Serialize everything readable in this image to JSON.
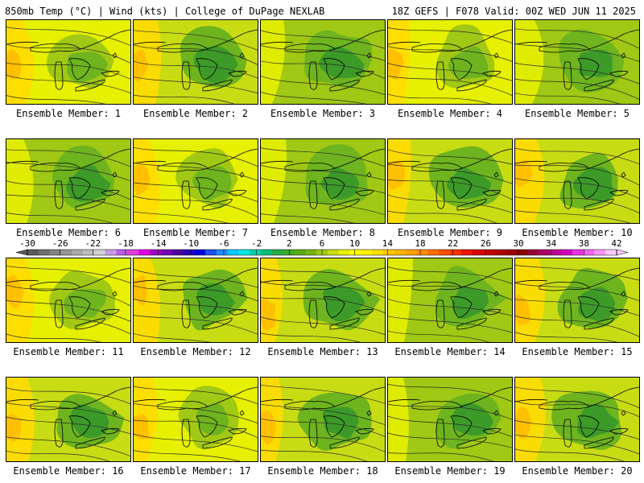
{
  "header": {
    "left_title": "850mb Temp (°C) | Wind (kts) | College of DuPage NEXLAB",
    "right_title": "18Z GEFS | F078 Valid: 00Z WED JUN 11 2025"
  },
  "caption_prefix": "Ensemble Member: ",
  "panels": [
    {
      "member": "1",
      "caption": "Ensemble Member: 1",
      "tone": "yellow"
    },
    {
      "member": "2",
      "caption": "Ensemble Member: 2",
      "tone": "mixed"
    },
    {
      "member": "3",
      "caption": "Ensemble Member: 3",
      "tone": "green"
    },
    {
      "member": "4",
      "caption": "Ensemble Member: 4",
      "tone": "yellow"
    },
    {
      "member": "5",
      "caption": "Ensemble Member: 5",
      "tone": "green"
    },
    {
      "member": "6",
      "caption": "Ensemble Member: 6",
      "tone": "green"
    },
    {
      "member": "7",
      "caption": "Ensemble Member: 7",
      "tone": "yellow"
    },
    {
      "member": "8",
      "caption": "Ensemble Member: 8",
      "tone": "green"
    },
    {
      "member": "9",
      "caption": "Ensemble Member: 9",
      "tone": "mixed"
    },
    {
      "member": "10",
      "caption": "Ensemble Member: 10",
      "tone": "mixed"
    },
    {
      "member": "11",
      "caption": "Ensemble Member: 11",
      "tone": "yellow"
    },
    {
      "member": "12",
      "caption": "Ensemble Member: 12",
      "tone": "mixed"
    },
    {
      "member": "13",
      "caption": "Ensemble Member: 13",
      "tone": "mixed"
    },
    {
      "member": "14",
      "caption": "Ensemble Member: 14",
      "tone": "green"
    },
    {
      "member": "15",
      "caption": "Ensemble Member: 15",
      "tone": "mixed"
    },
    {
      "member": "16",
      "caption": "Ensemble Member: 16",
      "tone": "mixed"
    },
    {
      "member": "17",
      "caption": "Ensemble Member: 17",
      "tone": "yellow"
    },
    {
      "member": "18",
      "caption": "Ensemble Member: 18",
      "tone": "mixed"
    },
    {
      "member": "19",
      "caption": "Ensemble Member: 19",
      "tone": "green"
    },
    {
      "member": "20",
      "caption": "Ensemble Member: 20",
      "tone": "mixed"
    }
  ],
  "colorbar": {
    "tick_labels": [
      "-30",
      "-26",
      "-22",
      "-18",
      "-14",
      "-10",
      "-6",
      "-2",
      "2",
      "6",
      "10",
      "14",
      "18",
      "22",
      "26",
      "30",
      "34",
      "38",
      "42"
    ],
    "colors": [
      "#5a5a5a",
      "#6e6e6e",
      "#828282",
      "#969696",
      "#aaaaaa",
      "#bebebe",
      "#d2d2d2",
      "#c89be6",
      "#be5ae6",
      "#dc3cdc",
      "#e600e6",
      "#a000c8",
      "#7800b4",
      "#5000a0",
      "#2800b4",
      "#0000dc",
      "#1e50f0",
      "#1e8cff",
      "#00c8ff",
      "#00e6e6",
      "#00d2aa",
      "#00be78",
      "#28aa46",
      "#3caa28",
      "#5aaa14",
      "#78b414",
      "#a0c814",
      "#c8dc14",
      "#e6f000",
      "#ffff00",
      "#fff000",
      "#ffdc00",
      "#ffc800",
      "#ffb400",
      "#ffa000",
      "#ff8c00",
      "#ff6e00",
      "#ff5000",
      "#ff3200",
      "#f01400",
      "#dc0000",
      "#c80000",
      "#b40000",
      "#a00000",
      "#8c0000",
      "#960032",
      "#aa0064",
      "#be0096",
      "#d200be",
      "#e632e6",
      "#f064f0",
      "#f896f8",
      "#fcc8fc"
    ]
  },
  "palette": {
    "dark_green": "#3c9a28",
    "mid_green": "#6eb41e",
    "light_green": "#a0c814",
    "yellow_green": "#c8dc14",
    "yellow": "#e6f000",
    "gold": "#ffdc00",
    "orange": "#ffb400",
    "contour": "#2a2a2a",
    "coast": "#000000"
  }
}
